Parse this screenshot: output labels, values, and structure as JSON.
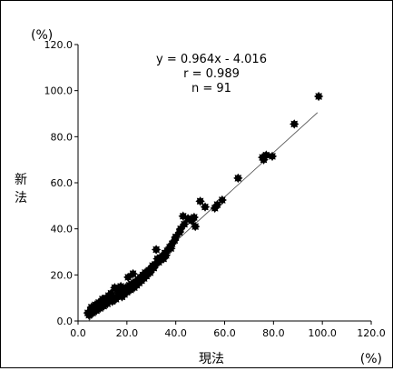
{
  "chart_data": {
    "type": "scatter",
    "x_unit": "(%)",
    "y_unit": "(%)",
    "xlabel": "現法",
    "ylabel_chars": [
      "新",
      "法"
    ],
    "xlim": [
      0,
      120
    ],
    "ylim": [
      0,
      120
    ],
    "x_ticks": [
      "0.0",
      "20.0",
      "40.0",
      "60.0",
      "80.0",
      "100.0",
      "120.0"
    ],
    "y_ticks": [
      "0.0",
      "20.0",
      "40.0",
      "60.0",
      "80.0",
      "100.0",
      "120.0"
    ],
    "annotations": [
      "y = 0.964x - 4.016",
      "r = 0.989",
      "n = 91"
    ],
    "regression": {
      "slope": 0.964,
      "intercept": -4.016,
      "x_range": [
        4,
        98
      ]
    },
    "marker_color": "#000000",
    "points": [
      [
        98.5,
        97.5
      ],
      [
        88.5,
        85.5
      ],
      [
        79.5,
        71.5
      ],
      [
        77.0,
        72.0
      ],
      [
        76.0,
        70.0
      ],
      [
        75.5,
        71.0
      ],
      [
        65.5,
        62.0
      ],
      [
        59.0,
        52.5
      ],
      [
        57.0,
        50.5
      ],
      [
        56.0,
        49.0
      ],
      [
        52.0,
        49.5
      ],
      [
        50.0,
        52.0
      ],
      [
        47.5,
        45.0
      ],
      [
        46.5,
        43.5
      ],
      [
        45.0,
        44.5
      ],
      [
        43.5,
        42.0
      ],
      [
        42.0,
        40.0
      ],
      [
        41.5,
        38.5
      ],
      [
        40.0,
        36.5
      ],
      [
        39.5,
        35.0
      ],
      [
        38.5,
        33.5
      ],
      [
        38.0,
        31.5
      ],
      [
        37.5,
        32.0
      ],
      [
        36.5,
        30.5
      ],
      [
        36.0,
        28.5
      ],
      [
        35.5,
        29.5
      ],
      [
        35.0,
        27.0
      ],
      [
        34.5,
        28.0
      ],
      [
        34.0,
        27.5
      ],
      [
        33.5,
        26.5
      ],
      [
        33.0,
        25.5
      ],
      [
        32.5,
        27.0
      ],
      [
        32.0,
        31.0
      ],
      [
        31.5,
        24.5
      ],
      [
        31.0,
        23.0
      ],
      [
        30.5,
        24.0
      ],
      [
        30.0,
        22.5
      ],
      [
        29.5,
        21.0
      ],
      [
        29.0,
        22.0
      ],
      [
        28.5,
        20.5
      ],
      [
        28.0,
        19.5
      ],
      [
        27.5,
        21.0
      ],
      [
        27.0,
        18.5
      ],
      [
        26.5,
        20.0
      ],
      [
        26.0,
        17.5
      ],
      [
        25.5,
        19.0
      ],
      [
        25.0,
        16.5
      ],
      [
        24.5,
        18.0
      ],
      [
        24.0,
        15.5
      ],
      [
        23.5,
        17.0
      ],
      [
        23.0,
        14.5
      ],
      [
        22.5,
        20.5
      ],
      [
        22.0,
        16.0
      ],
      [
        21.5,
        13.5
      ],
      [
        21.0,
        15.5
      ],
      [
        20.5,
        19.0
      ],
      [
        20.0,
        12.5
      ],
      [
        19.5,
        14.5
      ],
      [
        19.0,
        11.5
      ],
      [
        18.5,
        13.0
      ],
      [
        18.0,
        10.5
      ],
      [
        17.5,
        15.0
      ],
      [
        17.0,
        12.0
      ],
      [
        16.5,
        11.0
      ],
      [
        16.0,
        13.5
      ],
      [
        15.5,
        9.5
      ],
      [
        15.0,
        14.5
      ],
      [
        14.5,
        10.5
      ],
      [
        14.0,
        8.5
      ],
      [
        13.5,
        12.0
      ],
      [
        13.0,
        9.0
      ],
      [
        12.5,
        11.0
      ],
      [
        12.0,
        7.5
      ],
      [
        11.5,
        10.0
      ],
      [
        11.0,
        8.0
      ],
      [
        10.5,
        6.5
      ],
      [
        10.0,
        9.5
      ],
      [
        9.5,
        7.0
      ],
      [
        9.0,
        5.5
      ],
      [
        8.5,
        8.0
      ],
      [
        8.0,
        6.0
      ],
      [
        7.5,
        4.5
      ],
      [
        7.0,
        7.0
      ],
      [
        6.5,
        5.0
      ],
      [
        6.0,
        3.5
      ],
      [
        5.5,
        6.0
      ],
      [
        5.0,
        4.5
      ],
      [
        4.5,
        2.5
      ],
      [
        4.0,
        3.5
      ],
      [
        43.0,
        45.5
      ],
      [
        48.0,
        41.0
      ]
    ]
  }
}
